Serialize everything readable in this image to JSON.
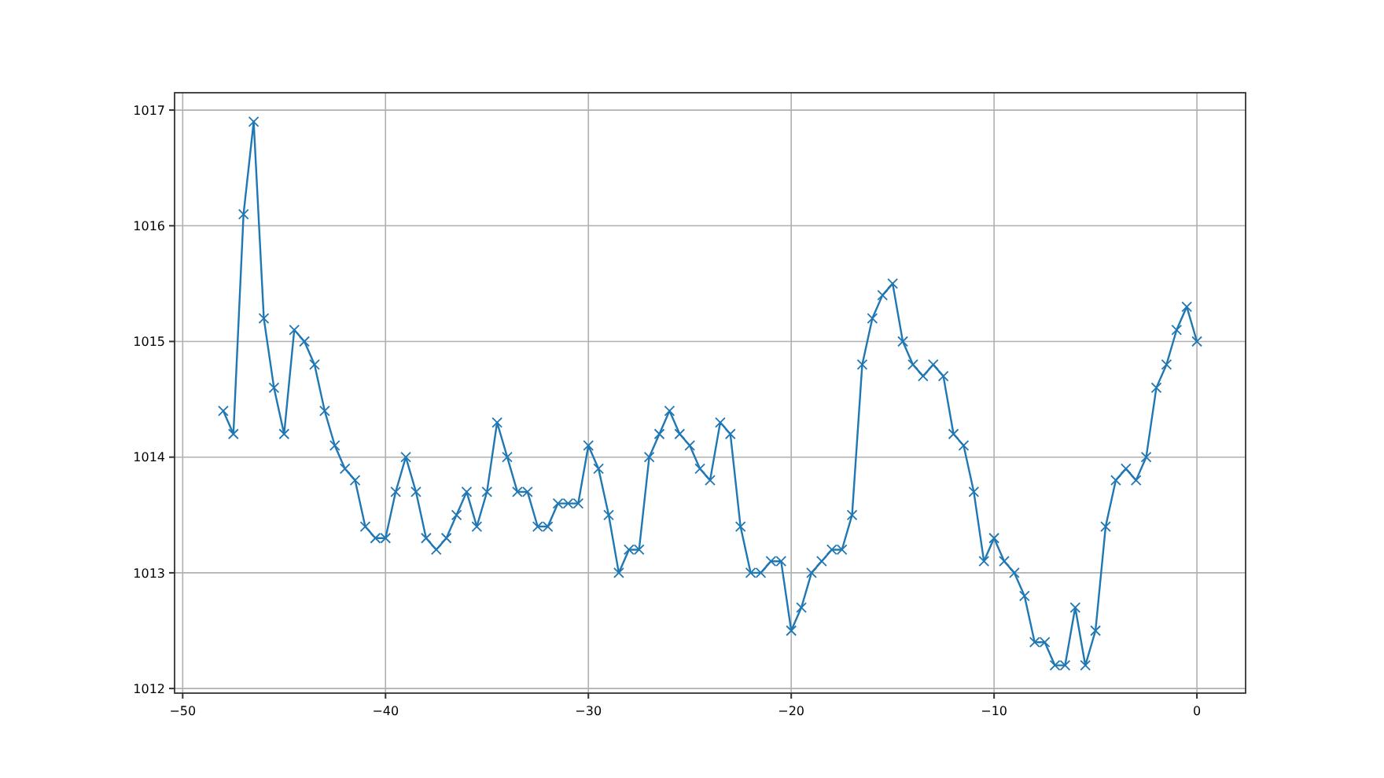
{
  "chart_data": {
    "type": "line",
    "x": [
      -48,
      -47.5,
      -47,
      -46.5,
      -46,
      -45.5,
      -45,
      -44.5,
      -44,
      -43.5,
      -43,
      -42.5,
      -42,
      -41.5,
      -41,
      -40.5,
      -40,
      -39.5,
      -39,
      -38.5,
      -38,
      -37.5,
      -37,
      -36.5,
      -36,
      -35.5,
      -35,
      -34.5,
      -34,
      -33.5,
      -33,
      -32.5,
      -32,
      -31.5,
      -31,
      -30.5,
      -30,
      -29.5,
      -29,
      -28.5,
      -28,
      -27.5,
      -27,
      -26.5,
      -26,
      -25.5,
      -25,
      -24.5,
      -24,
      -23.5,
      -23,
      -22.5,
      -22,
      -21.5,
      -21,
      -20.5,
      -20,
      -19.5,
      -19,
      -18.5,
      -18,
      -17.5,
      -17,
      -16.5,
      -16,
      -15.5,
      -15,
      -14.5,
      -14,
      -13.5,
      -13,
      -12.5,
      -12,
      -11.5,
      -11,
      -10.5,
      -10,
      -9.5,
      -9,
      -8.5,
      -8,
      -7.5,
      -7,
      -6.5,
      -6,
      -5.5,
      -5,
      -4.5,
      -4,
      -3.5,
      -3,
      -2.5,
      -2,
      -1.5,
      -1,
      -0.5,
      0
    ],
    "series": [
      {
        "color": "#1f77b4",
        "values": [
          1014.4,
          1014.2,
          1016.1,
          1016.9,
          1015.2,
          1014.6,
          1014.2,
          1015.1,
          1015.0,
          1014.8,
          1014.4,
          1014.1,
          1013.9,
          1013.8,
          1013.4,
          1013.3,
          1013.3,
          1013.7,
          1014.0,
          1013.7,
          1013.3,
          1013.2,
          1013.3,
          1013.5,
          1013.7,
          1013.4,
          1013.7,
          1014.3,
          1014.0,
          1013.7,
          1013.7,
          1013.4,
          1013.4,
          1013.6,
          1013.6,
          1013.6,
          1014.1,
          1013.9,
          1013.5,
          1013.0,
          1013.2,
          1013.2,
          1014.0,
          1014.2,
          1014.4,
          1014.2,
          1014.1,
          1013.9,
          1013.8,
          1014.3,
          1014.2,
          1013.4,
          1013.0,
          1013.0,
          1013.1,
          1013.1,
          1012.5,
          1012.7,
          1013.0,
          1013.1,
          1013.2,
          1013.2,
          1013.5,
          1014.8,
          1015.2,
          1015.4,
          1015.5,
          1015.0,
          1014.8,
          1014.7,
          1014.8,
          1014.7,
          1014.2,
          1014.1,
          1013.7,
          1013.1,
          1013.3,
          1013.1,
          1013.0,
          1012.8,
          1012.4,
          1012.4,
          1012.2,
          1012.2,
          1012.7,
          1012.2,
          1012.5,
          1013.4,
          1013.8,
          1013.9,
          1013.8,
          1014.0,
          1014.6,
          1014.8,
          1015.1,
          1015.3,
          1015.0
        ]
      }
    ],
    "xlim": [
      -50.4,
      2.4
    ],
    "xticks": [
      -50,
      -40,
      -30,
      -20,
      -10,
      0
    ],
    "ylim": [
      1011.96,
      1017.15
    ],
    "yticks": [
      1012,
      1013,
      1014,
      1015,
      1016,
      1017
    ],
    "grid": true,
    "marker": "cross",
    "line_style": "solid"
  }
}
